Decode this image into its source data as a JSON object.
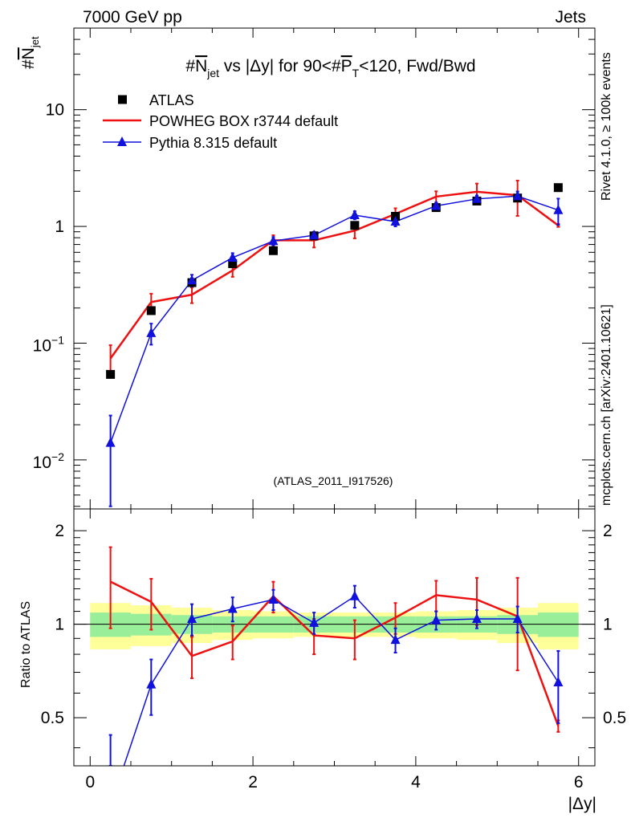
{
  "header": {
    "left": "7000 GeV pp",
    "right": "Jets"
  },
  "side_labels": {
    "rivet": "Rivet 4.1.0, ≥ 100k events",
    "mcplots": "mcplots.cern.ch [arXiv:2401.10621]"
  },
  "analysis_id": "(ATLAS_2011_I917526)",
  "chart_data": {
    "type": "scatter",
    "title": "#N_jet vs |Δy| for 90<#P_T<120, Fwd/Bwd",
    "title_parts": {
      "p1": "#",
      "p2": "N",
      "p3": "jet",
      "p4": " vs |Δy| for 90<#",
      "p5": "P",
      "p6": "T",
      "p7": "<120, Fwd/Bwd"
    },
    "xlabel": "|Δy|",
    "ylabel_main": {
      "hash": "#",
      "n": "N",
      "sub": "jet"
    },
    "ylabel_ratio": "Ratio to ATLAS",
    "xlim": [
      -0.2,
      6.2
    ],
    "ylim_main": [
      0.0038,
      50
    ],
    "ylim_ratio": [
      0.35,
      2.35
    ],
    "x_ticks": [
      "0",
      "2",
      "4",
      "6"
    ],
    "x_tick_values": [
      0,
      2,
      4,
      6
    ],
    "main_y_ticks": [
      {
        "value": 10,
        "label": "10",
        "base": "",
        "exp": ""
      },
      {
        "value": 1,
        "label": "1",
        "base": "",
        "exp": ""
      },
      {
        "value": 0.1,
        "label": "",
        "base": "10",
        "exp": "−1"
      },
      {
        "value": 0.01,
        "label": "",
        "base": "10",
        "exp": "−2"
      }
    ],
    "ratio_y_ticks": [
      {
        "value": 2,
        "label": "2"
      },
      {
        "value": 1,
        "label": "1"
      },
      {
        "value": 0.5,
        "label": "0.5"
      }
    ],
    "x": [
      0.25,
      0.75,
      1.25,
      1.75,
      2.25,
      2.75,
      3.25,
      3.75,
      4.25,
      4.75,
      5.25,
      5.75
    ],
    "bin_edges": [
      0,
      0.5,
      1,
      1.5,
      2,
      2.5,
      3,
      3.5,
      4,
      4.5,
      5,
      5.5,
      6
    ],
    "legend": [
      {
        "name": "ATLAS",
        "color": "#000000",
        "marker": "square"
      },
      {
        "name": "POWHEG BOX r3744 default",
        "color": "#ee1111",
        "marker": "line"
      },
      {
        "name": "Pythia 8.315 default",
        "color": "#1111dd",
        "marker": "triangle"
      }
    ],
    "series": [
      {
        "name": "ATLAS",
        "values": [
          0.054,
          0.19,
          0.33,
          0.48,
          0.62,
          0.83,
          1.02,
          1.22,
          1.45,
          1.65,
          1.75,
          2.15
        ],
        "errors": [
          0.003,
          0.01,
          0.02,
          0.025,
          0.03,
          0.04,
          0.05,
          0.06,
          0.07,
          0.08,
          0.09,
          0.1
        ]
      },
      {
        "name": "POWHEG BOX r3744 default",
        "values": [
          0.074,
          0.225,
          0.26,
          0.42,
          0.76,
          0.76,
          0.92,
          1.28,
          1.8,
          1.98,
          1.85,
          1.02
        ],
        "errors": [
          0.022,
          0.04,
          0.04,
          0.05,
          0.08,
          0.1,
          0.13,
          0.15,
          0.2,
          0.35,
          0.62,
          0.03
        ]
      },
      {
        "name": "Pythia 8.315 default",
        "values": [
          0.014,
          0.122,
          0.345,
          0.54,
          0.75,
          0.84,
          1.25,
          1.1,
          1.5,
          1.72,
          1.82,
          1.38
        ],
        "errors": [
          0.01,
          0.025,
          0.04,
          0.05,
          0.06,
          0.06,
          0.1,
          0.1,
          0.1,
          0.12,
          0.17,
          0.35
        ]
      }
    ],
    "ratio_series": [
      {
        "name": "POWHEG BOX r3744 default",
        "values": [
          1.37,
          1.18,
          0.79,
          0.88,
          1.23,
          0.92,
          0.9,
          1.05,
          1.24,
          1.2,
          1.06,
          0.47
        ],
        "errors": [
          0.4,
          0.22,
          0.12,
          0.11,
          0.14,
          0.12,
          0.13,
          0.12,
          0.14,
          0.21,
          0.35,
          0.02
        ]
      },
      {
        "name": "Pythia 8.315 default",
        "values": [
          0.26,
          0.64,
          1.04,
          1.12,
          1.2,
          1.01,
          1.23,
          0.89,
          1.03,
          1.04,
          1.04,
          0.65
        ],
        "errors": [
          0.18,
          0.13,
          0.12,
          0.1,
          0.09,
          0.08,
          0.1,
          0.08,
          0.07,
          0.07,
          0.1,
          0.17
        ]
      }
    ],
    "band_inner": [
      0.09,
      0.08,
      0.07,
      0.06,
      0.06,
      0.06,
      0.06,
      0.06,
      0.06,
      0.06,
      0.07,
      0.09
    ],
    "band_outer": [
      0.17,
      0.15,
      0.13,
      0.11,
      0.1,
      0.09,
      0.09,
      0.09,
      0.1,
      0.11,
      0.13,
      0.17
    ],
    "colors": {
      "atlas": "#000000",
      "powheg": "#ee1111",
      "pythia": "#1111dd",
      "band_inner": "#99ee99",
      "band_outer": "#ffff99",
      "side_text": "#888888"
    }
  }
}
